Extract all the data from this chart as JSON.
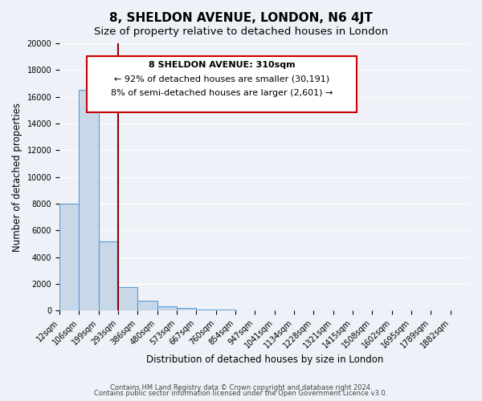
{
  "title": "8, SHELDON AVENUE, LONDON, N6 4JT",
  "subtitle": "Size of property relative to detached houses in London",
  "xlabel": "Distribution of detached houses by size in London",
  "ylabel": "Number of detached properties",
  "bar_labels": [
    "12sqm",
    "106sqm",
    "199sqm",
    "293sqm",
    "386sqm",
    "480sqm",
    "573sqm",
    "667sqm",
    "760sqm",
    "854sqm",
    "947sqm",
    "1041sqm",
    "1134sqm",
    "1228sqm",
    "1321sqm",
    "1415sqm",
    "1508sqm",
    "1602sqm",
    "1695sqm",
    "1789sqm",
    "1882sqm"
  ],
  "bar_values": [
    8000,
    16500,
    5200,
    1750,
    750,
    300,
    200,
    100,
    100,
    0,
    0,
    0,
    0,
    0,
    0,
    0,
    0,
    0,
    0,
    0,
    0
  ],
  "bar_color": "#c8d8e8",
  "bar_edge_color": "#5b9bd5",
  "background_color": "#eef2f8",
  "grid_color": "#ffffff",
  "vline_x": 3,
  "vline_color": "#8b0000",
  "annotation_title": "8 SHELDON AVENUE: 310sqm",
  "annotation_line1": "← 92% of detached houses are smaller (30,191)",
  "annotation_line2": "8% of semi-detached houses are larger (2,601) →",
  "annotation_box_color": "#ffffff",
  "annotation_box_edge": "#cc0000",
  "ylim": [
    0,
    20000
  ],
  "yticks": [
    0,
    2000,
    4000,
    6000,
    8000,
    10000,
    12000,
    14000,
    16000,
    18000,
    20000
  ],
  "footer1": "Contains HM Land Registry data © Crown copyright and database right 2024.",
  "footer2": "Contains public sector information licensed under the Open Government Licence v3.0.",
  "title_fontsize": 11,
  "subtitle_fontsize": 9.5,
  "axis_label_fontsize": 8.5,
  "tick_fontsize": 7,
  "annotation_fontsize": 8
}
